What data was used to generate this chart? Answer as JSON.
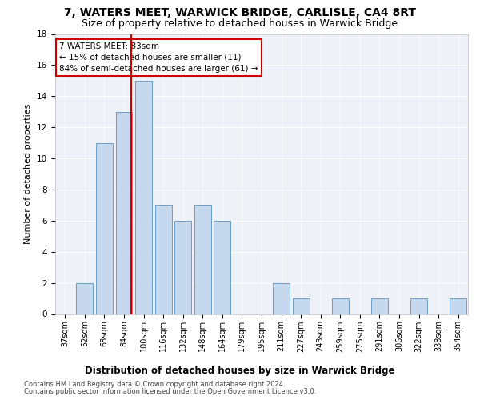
{
  "title": "7, WATERS MEET, WARWICK BRIDGE, CARLISLE, CA4 8RT",
  "subtitle": "Size of property relative to detached houses in Warwick Bridge",
  "xlabel": "Distribution of detached houses by size in Warwick Bridge",
  "ylabel": "Number of detached properties",
  "categories": [
    "37sqm",
    "52sqm",
    "68sqm",
    "84sqm",
    "100sqm",
    "116sqm",
    "132sqm",
    "148sqm",
    "164sqm",
    "179sqm",
    "195sqm",
    "211sqm",
    "227sqm",
    "243sqm",
    "259sqm",
    "275sqm",
    "291sqm",
    "306sqm",
    "322sqm",
    "338sqm",
    "354sqm"
  ],
  "values": [
    0,
    2,
    11,
    13,
    15,
    7,
    6,
    7,
    6,
    0,
    0,
    2,
    1,
    0,
    1,
    0,
    1,
    0,
    1,
    0,
    1
  ],
  "bar_color": "#c5d8ed",
  "bar_edge_color": "#6a9ec5",
  "vline_x_index": 3,
  "vline_color": "#cc0000",
  "annotation_line1": "7 WATERS MEET: 83sqm",
  "annotation_line2": "← 15% of detached houses are smaller (11)",
  "annotation_line3": "84% of semi-detached houses are larger (61) →",
  "annotation_box_color": "#cc0000",
  "ylim": [
    0,
    18
  ],
  "yticks": [
    0,
    2,
    4,
    6,
    8,
    10,
    12,
    14,
    16,
    18
  ],
  "footer1": "Contains HM Land Registry data © Crown copyright and database right 2024.",
  "footer2": "Contains public sector information licensed under the Open Government Licence v3.0.",
  "bg_color": "#eef2f8",
  "grid_color": "#ffffff",
  "fig_bg_color": "#ffffff",
  "title_fontsize": 10,
  "subtitle_fontsize": 9,
  "tick_fontsize": 7,
  "ylabel_fontsize": 8,
  "xlabel_fontsize": 8.5,
  "annotation_fontsize": 7.5
}
